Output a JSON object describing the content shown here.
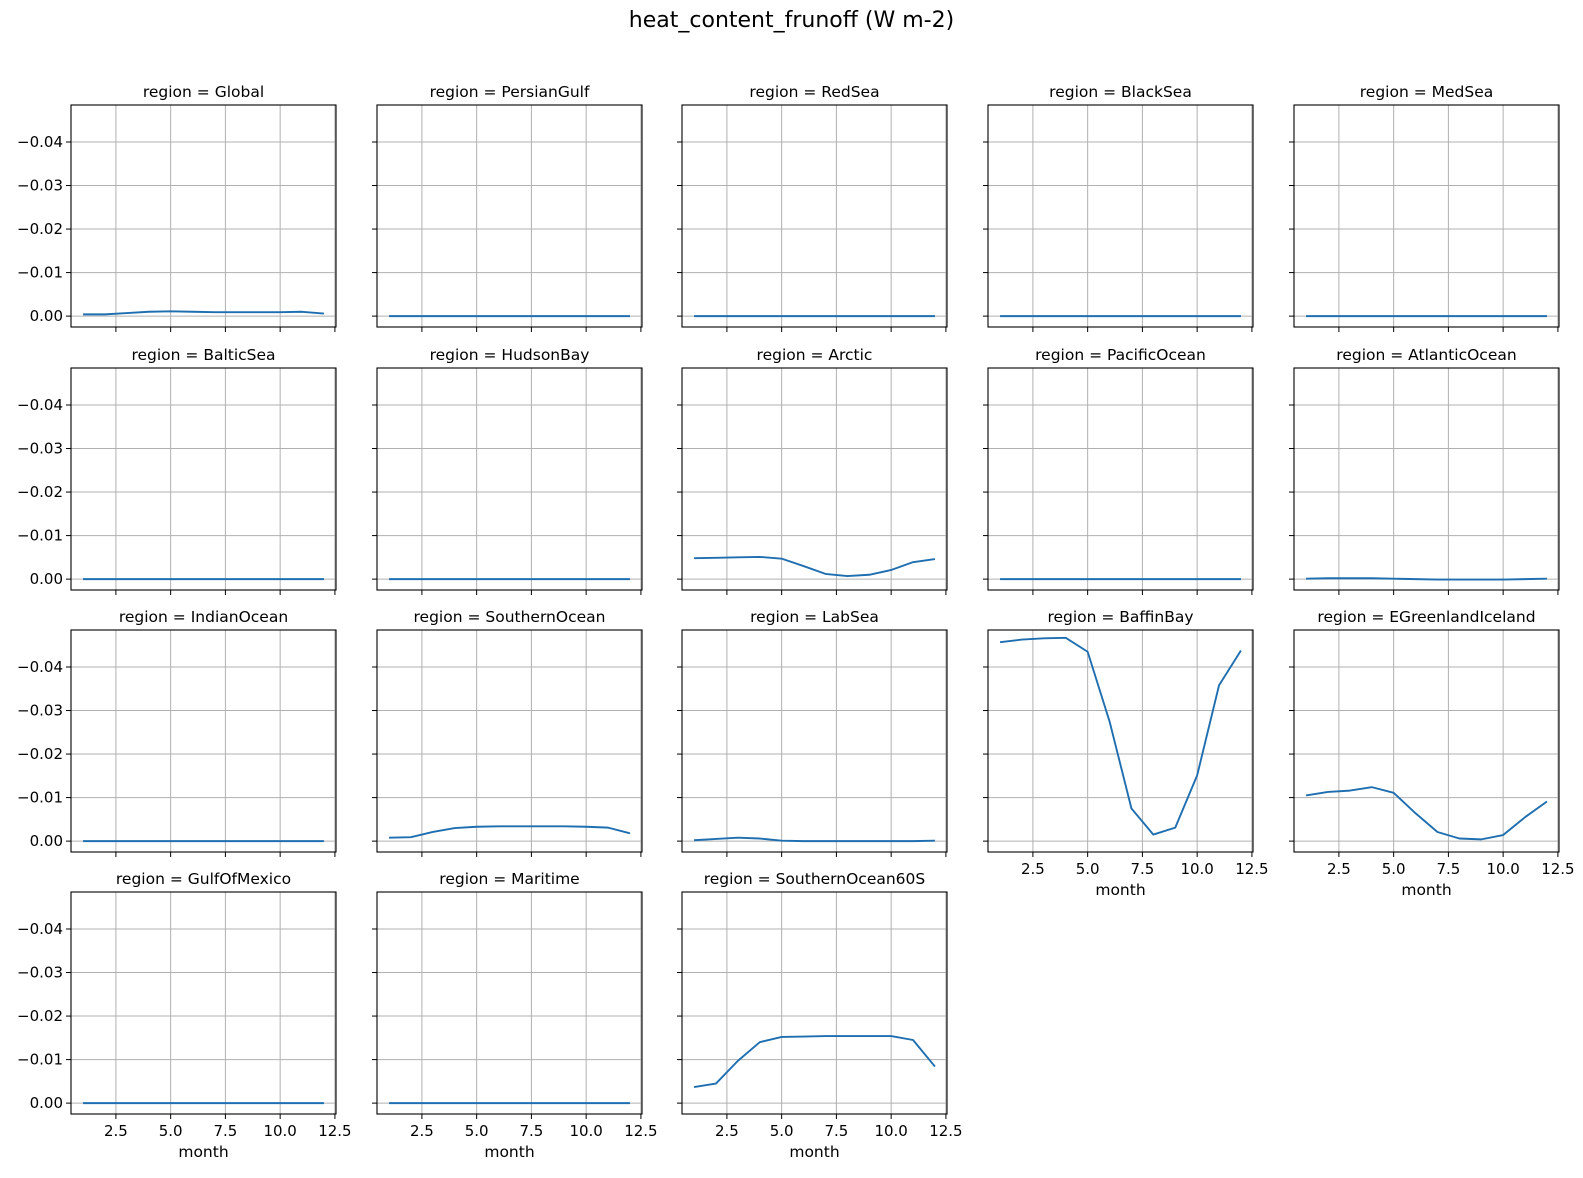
{
  "figure": {
    "title": "heat_content_frunoff (W m-2)"
  },
  "chart_data": {
    "type": "line",
    "layout": "facet-grid",
    "columns": 5,
    "sharex": true,
    "sharey": true,
    "x": [
      1,
      2,
      3,
      4,
      5,
      6,
      7,
      8,
      9,
      10,
      11,
      12
    ],
    "xlabel": "month",
    "ylabel": "",
    "xlim": [
      0.45,
      12.55
    ],
    "xticks": [
      2.5,
      5.0,
      7.5,
      10.0,
      12.5
    ],
    "xtick_labels": [
      "2.5",
      "5.0",
      "7.5",
      "10.0",
      "12.5"
    ],
    "ylim": [
      0.0025,
      -0.0485
    ],
    "yticks": [
      0.0,
      -0.01,
      -0.02,
      -0.03,
      -0.04
    ],
    "ytick_labels": [
      "0.00",
      "−0.01",
      "−0.02",
      "−0.03",
      "−0.04"
    ],
    "y_axis_inverted": true,
    "grid": true,
    "line_color": "#1f6fb0",
    "panel_title_prefix": "region = ",
    "panels": [
      {
        "region": "Global",
        "values": [
          -0.0004,
          -0.0004,
          -0.0007,
          -0.001,
          -0.0011,
          -0.001,
          -0.0009,
          -0.0009,
          -0.0009,
          -0.0009,
          -0.001,
          -0.0006
        ]
      },
      {
        "region": "PersianGulf",
        "values": [
          0,
          0,
          0,
          0,
          0,
          0,
          0,
          0,
          0,
          0,
          0,
          0
        ]
      },
      {
        "region": "RedSea",
        "values": [
          0,
          0,
          0,
          0,
          0,
          0,
          0,
          0,
          0,
          0,
          0,
          0
        ]
      },
      {
        "region": "BlackSea",
        "values": [
          0,
          0,
          0,
          0,
          0,
          0,
          0,
          0,
          0,
          0,
          0,
          0
        ]
      },
      {
        "region": "MedSea",
        "values": [
          0,
          0,
          0,
          0,
          0,
          0,
          0,
          0,
          0,
          0,
          0,
          0
        ]
      },
      {
        "region": "BalticSea",
        "values": [
          0,
          0,
          0,
          0,
          0,
          0,
          0,
          0,
          0,
          0,
          0,
          0
        ]
      },
      {
        "region": "HudsonBay",
        "values": [
          0,
          0,
          0,
          0,
          0,
          0,
          0,
          0,
          0,
          0,
          0,
          0
        ]
      },
      {
        "region": "Arctic",
        "values": [
          -0.0048,
          -0.0049,
          -0.005,
          -0.0051,
          -0.0047,
          -0.003,
          -0.0012,
          -0.0007,
          -0.001,
          -0.0021,
          -0.0039,
          -0.0046
        ]
      },
      {
        "region": "PacificOcean",
        "values": [
          0,
          0,
          0,
          0,
          0,
          0,
          0,
          0,
          0,
          0,
          0,
          0
        ]
      },
      {
        "region": "AtlanticOcean",
        "values": [
          -0.0001,
          -0.0002,
          -0.0002,
          -0.0002,
          -0.0001,
          0.0,
          0.0001,
          0.0001,
          0.0001,
          0.0001,
          0.0,
          -0.0001
        ]
      },
      {
        "region": "IndianOcean",
        "values": [
          0,
          0,
          0,
          0,
          0,
          0,
          0,
          0,
          0,
          0,
          0,
          0
        ]
      },
      {
        "region": "SouthernOcean",
        "values": [
          -0.0008,
          -0.0009,
          -0.0021,
          -0.003,
          -0.0033,
          -0.0034,
          -0.0034,
          -0.0034,
          -0.0034,
          -0.0033,
          -0.0031,
          -0.0018
        ]
      },
      {
        "region": "LabSea",
        "values": [
          -0.0002,
          -0.0005,
          -0.0008,
          -0.0006,
          -0.0001,
          0.0,
          0.0,
          0.0,
          0.0,
          0.0,
          0.0,
          -0.0001
        ]
      },
      {
        "region": "BaffinBay",
        "values": [
          -0.0457,
          -0.0463,
          -0.0466,
          -0.0467,
          -0.0435,
          -0.0275,
          -0.0075,
          -0.0015,
          -0.0031,
          -0.0151,
          -0.0358,
          -0.0438
        ]
      },
      {
        "region": "EGreenlandIceland",
        "values": [
          -0.0105,
          -0.0113,
          -0.0116,
          -0.0124,
          -0.0111,
          -0.0064,
          -0.0021,
          -0.0006,
          -0.0004,
          -0.0014,
          -0.0055,
          -0.0091
        ]
      },
      {
        "region": "GulfOfMexico",
        "values": [
          0,
          0,
          0,
          0,
          0,
          0,
          0,
          0,
          0,
          0,
          0,
          0
        ]
      },
      {
        "region": "Maritime",
        "values": [
          0,
          0,
          0,
          0,
          0,
          0,
          0,
          0,
          0,
          0,
          0,
          0
        ]
      },
      {
        "region": "SouthernOcean60S",
        "values": [
          -0.0037,
          -0.0045,
          -0.0097,
          -0.014,
          -0.0152,
          -0.0153,
          -0.0154,
          -0.0154,
          -0.0154,
          -0.0154,
          -0.0145,
          -0.0084
        ]
      }
    ]
  }
}
